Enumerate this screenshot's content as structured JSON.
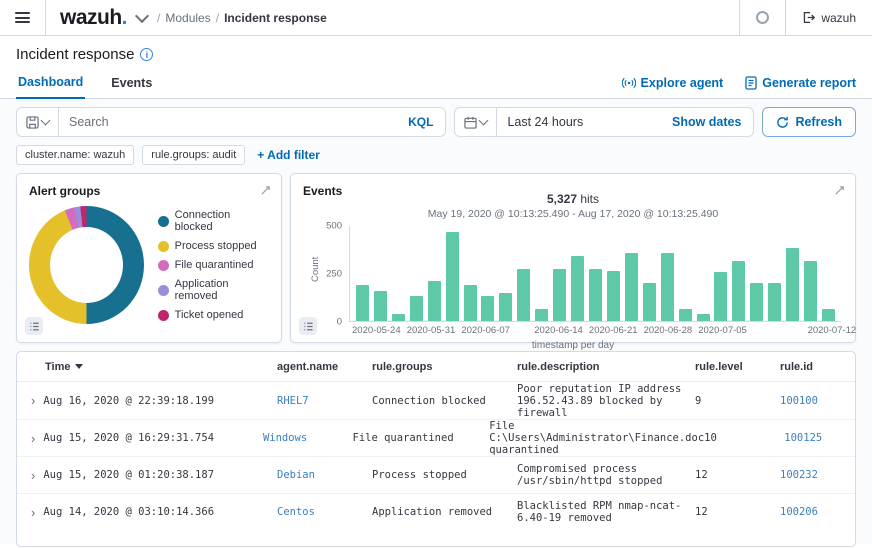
{
  "topbar": {
    "logo_text": "wazuh",
    "logo_dot": ".",
    "breadcrumb": {
      "sep": "/",
      "section": "Modules",
      "current": "Incident response"
    },
    "user": "wazuh"
  },
  "page": {
    "title": "Incident response"
  },
  "tabs": {
    "dashboard": "Dashboard",
    "events": "Events"
  },
  "actions": {
    "explore_agent": "Explore agent",
    "generate_report": "Generate report"
  },
  "searchbar": {
    "placeholder": "Search",
    "kql": "KQL",
    "date_value": "Last 24 hours",
    "show_dates": "Show dates",
    "refresh": "Refresh"
  },
  "filters": {
    "pills": [
      "cluster.name: wazuh",
      "rule.groups: audit"
    ],
    "add_label": "+ Add filter"
  },
  "colors": {
    "accent": "#006bb4",
    "bar": "#5dc9a8",
    "border": "#d3dae6"
  },
  "chart_data": [
    {
      "type": "pie",
      "title": "Alert groups",
      "donut": true,
      "legend_position": "right",
      "labels": [
        "Connection blocked",
        "Process stopped",
        "File quarantined",
        "Application removed",
        "Ticket opened"
      ],
      "values_pct": [
        50,
        44,
        2.6,
        1.7,
        1.7
      ],
      "colors": [
        "#17708f",
        "#e4c12b",
        "#d36bbf",
        "#9b8fdb",
        "#c0266e"
      ]
    },
    {
      "type": "bar",
      "title": "Events",
      "hits": "5,327",
      "hits_suffix": " hits",
      "date_range": "May 19, 2020 @ 10:13:25.490 - Aug 17, 2020 @ 10:13:25.490",
      "values": [
        190,
        160,
        35,
        130,
        210,
        470,
        190,
        130,
        145,
        275,
        65,
        275,
        340,
        275,
        265,
        360,
        200,
        360,
        65,
        35,
        260,
        315,
        200,
        200,
        385,
        315,
        65
      ],
      "bar_color": "#5dc9a8",
      "xlabel": "timestamp per day",
      "ylabel": "Count",
      "ylim": [
        0,
        500
      ],
      "yticks": [
        0,
        250,
        500
      ],
      "xtick_labels": [
        "2020-05-24",
        "2020-05-31",
        "2020-06-07",
        "2020-06-14",
        "2020-06-21",
        "2020-06-28",
        "2020-07-05",
        "2020-07-12"
      ],
      "xtick_bar_indices": [
        1,
        4,
        7,
        11,
        14,
        17,
        20,
        26
      ],
      "grid": false
    }
  ],
  "table": {
    "columns": [
      "Time",
      "agent.name",
      "rule.groups",
      "rule.description",
      "rule.level",
      "rule.id"
    ],
    "rows": [
      {
        "time": "Aug 16, 2020 @ 22:39:18.199",
        "agent": "RHEL7",
        "groups": "Connection blocked",
        "desc": "Poor reputation IP address 196.52.43.89 blocked by firewall",
        "level": "9",
        "id": "100100"
      },
      {
        "time": "Aug 15, 2020 @ 16:29:31.754",
        "agent": "Windows",
        "groups": "File quarantined",
        "desc": "File C:\\Users\\Administrator\\Finance.doc quarantined",
        "level": "10",
        "id": "100125"
      },
      {
        "time": "Aug 15, 2020 @ 01:20:38.187",
        "agent": "Debian",
        "groups": "Process stopped",
        "desc": "Compromised process /usr/sbin/httpd stopped",
        "level": "12",
        "id": "100232"
      },
      {
        "time": "Aug 14, 2020 @ 03:10:14.366",
        "agent": "Centos",
        "groups": "Application removed",
        "desc": "Blacklisted RPM nmap-ncat-6.40-19 removed",
        "level": "12",
        "id": "100206"
      }
    ]
  }
}
